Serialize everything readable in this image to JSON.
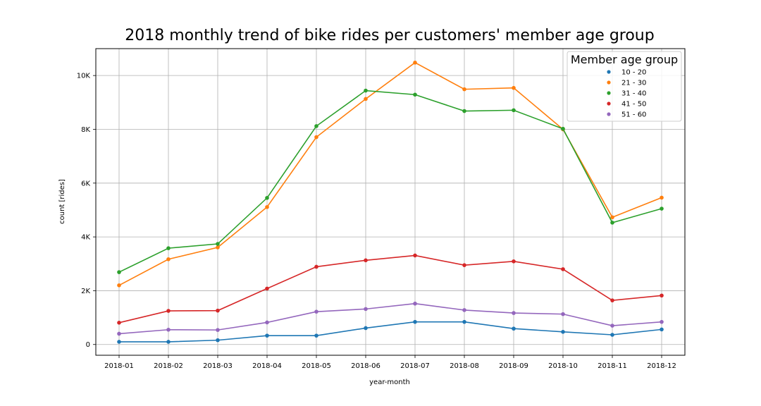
{
  "chart_data": {
    "type": "line",
    "title": "2018 monthly trend of bike rides per customers' member age group",
    "xlabel": "year-month",
    "ylabel": "count [rides]",
    "categories": [
      "2018-01",
      "2018-02",
      "2018-03",
      "2018-04",
      "2018-05",
      "2018-06",
      "2018-07",
      "2018-08",
      "2018-09",
      "2018-10",
      "2018-11",
      "2018-12"
    ],
    "ylim": [
      -400,
      11000
    ],
    "yticks": [
      0,
      2000,
      4000,
      6000,
      8000,
      10000
    ],
    "ytick_labels": [
      "0",
      "2K",
      "4K",
      "6K",
      "8K",
      "10K"
    ],
    "grid": true,
    "legend_title": "Member age group",
    "legend_position": "top-right",
    "series": [
      {
        "name": "10 - 20",
        "color": "#1f77b4",
        "values": [
          100,
          100,
          160,
          330,
          330,
          610,
          840,
          840,
          590,
          470,
          360,
          560
        ]
      },
      {
        "name": "21 - 30",
        "color": "#ff7f0e",
        "values": [
          2200,
          3170,
          3610,
          5110,
          7710,
          9130,
          10480,
          9490,
          9540,
          8000,
          4730,
          5460
        ]
      },
      {
        "name": "31 - 40",
        "color": "#2ca02c",
        "values": [
          2690,
          3580,
          3740,
          5450,
          8120,
          9440,
          9290,
          8680,
          8710,
          8020,
          4530,
          5050
        ]
      },
      {
        "name": "41 - 50",
        "color": "#d62728",
        "values": [
          810,
          1250,
          1260,
          2080,
          2890,
          3130,
          3310,
          2950,
          3090,
          2800,
          1640,
          1820
        ]
      },
      {
        "name": "51 - 60",
        "color": "#9467bd",
        "values": [
          400,
          550,
          540,
          820,
          1220,
          1320,
          1520,
          1280,
          1170,
          1130,
          700,
          840
        ]
      }
    ]
  }
}
